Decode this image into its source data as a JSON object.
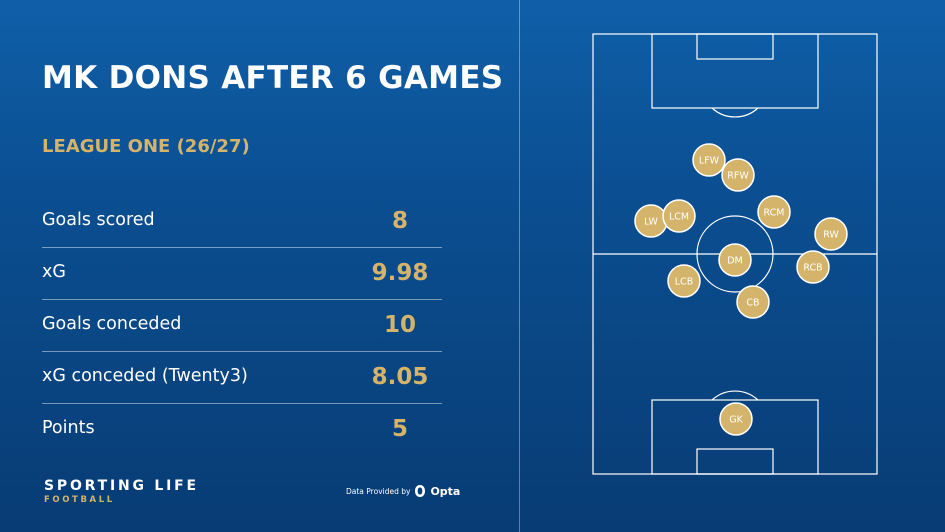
{
  "title": "MK DONS AFTER 6 GAMES",
  "subtitle": "LEAGUE ONE (26/27)",
  "stats": [
    {
      "label": "Goals scored",
      "value": "8"
    },
    {
      "label": "xG",
      "value": "9.98"
    },
    {
      "label": "Goals conceded",
      "value": "10"
    },
    {
      "label": "xG conceded (Twenty3)",
      "value": "8.05"
    },
    {
      "label": "Points",
      "value": "5"
    }
  ],
  "brand": {
    "main": "SPORTING LIFE",
    "sub": "FOOTBALL"
  },
  "provider": {
    "text": "Data Provided by",
    "name": "Opta",
    "icon": "opta-logo-icon"
  },
  "colors": {
    "accent": "#d4b36a",
    "background": "#0b4f92",
    "player_fill": "#d4b36a"
  },
  "players": [
    "LFW",
    "RFW",
    "LW",
    "LCM",
    "RCM",
    "RW",
    "DM",
    "LCB",
    "RCB",
    "CB",
    "GK"
  ]
}
